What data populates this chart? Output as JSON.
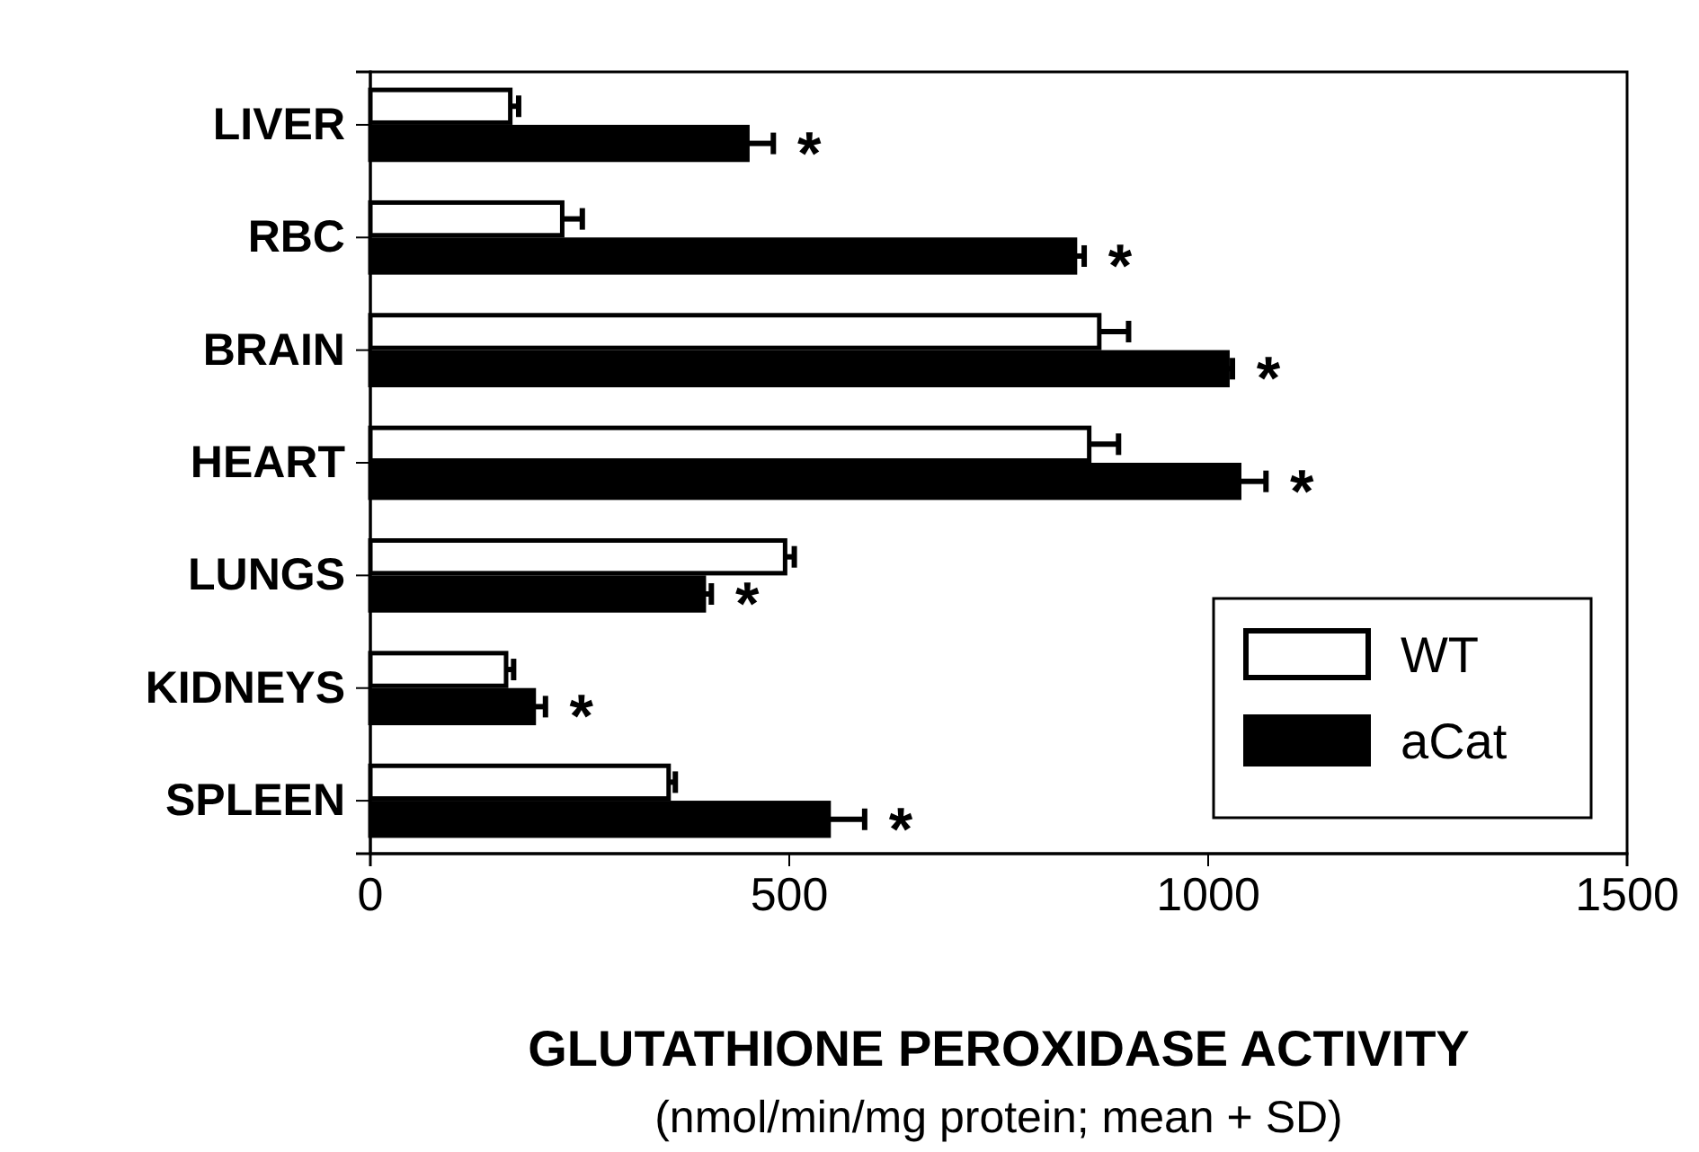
{
  "chart_data": {
    "type": "bar",
    "orientation": "horizontal",
    "xlabel": "GLUTATHIONE PEROXIDASE ACTIVITY",
    "categories": [
      "LIVER",
      "RBC",
      "BRAIN",
      "HEART",
      "LUNGS",
      "KIDNEYS",
      "SPLEEN"
    ],
    "series": [
      {
        "name": "WT",
        "color": "#ffffff",
        "values": [
          167,
          229,
          870,
          858,
          495,
          162,
          356
        ],
        "errors": [
          [
            167,
            177
          ],
          [
            229,
            253
          ],
          [
            870,
            905
          ],
          [
            858,
            893
          ],
          [
            495,
            506
          ],
          [
            162,
            171
          ],
          [
            356,
            364
          ]
        ]
      },
      {
        "name": "aCat",
        "color": "#000000",
        "values": [
          450,
          841,
          1023,
          1037,
          398,
          195,
          547
        ],
        "errors": [
          [
            450,
            481
          ],
          [
            841,
            852
          ],
          [
            1023,
            1029
          ],
          [
            1037,
            1069
          ],
          [
            398,
            407
          ],
          [
            195,
            209
          ],
          [
            547,
            590
          ]
        ]
      }
    ],
    "xlim": [
      0,
      1500
    ],
    "xticks": [
      0,
      500,
      1000,
      1500
    ],
    "grid": false,
    "legend": "bottom right",
    "annotations": [
      {
        "text": "*",
        "x": 481,
        "y": "LIVER"
      },
      {
        "text": "*",
        "x": 852,
        "y": "RBC"
      },
      {
        "text": "*",
        "x": 1029,
        "y": "BRAIN"
      },
      {
        "text": "*",
        "x": 1069,
        "y": "HEART"
      },
      {
        "text": "*",
        "x": 407,
        "y": "LUNGS"
      },
      {
        "text": "*",
        "x": 209,
        "y": "KIDNEYS"
      },
      {
        "text": "*",
        "x": 590,
        "y": "SPLEEN"
      },
      "(nmol/min/mg protein; mean + SD)"
    ]
  }
}
